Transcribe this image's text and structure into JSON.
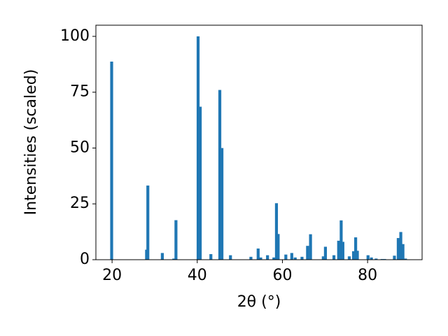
{
  "chart_data": {
    "type": "bar",
    "xlabel": "2θ (°)",
    "ylabel": "Intensities (scaled)",
    "color": "#1f77b4",
    "x": [
      19.9,
      28.1,
      28.4,
      31.8,
      34.5,
      35.0,
      40.2,
      40.7,
      43.2,
      45.3,
      45.8,
      47.8,
      52.6,
      54.3,
      54.9,
      56.5,
      58.0,
      58.6,
      59.0,
      60.8,
      62.2,
      63.0,
      64.6,
      65.9,
      66.6,
      69.6,
      70.1,
      72.1,
      73.2,
      73.8,
      74.2,
      75.7,
      76.7,
      77.2,
      77.6,
      80.1,
      80.9,
      82.0,
      83.4,
      84.0,
      86.3,
      87.2,
      87.8,
      88.3,
      88.9
    ],
    "values": [
      88.7,
      4.5,
      33.2,
      3.0,
      0.5,
      17.7,
      100,
      68.5,
      2.5,
      76.0,
      50.0,
      2.0,
      1.3,
      5.0,
      1.0,
      2.0,
      1.0,
      25.3,
      11.5,
      2.3,
      3.0,
      1.0,
      1.3,
      6.2,
      11.4,
      1.5,
      5.8,
      2.0,
      8.5,
      17.6,
      8.0,
      1.5,
      3.8,
      10.0,
      4.0,
      2.0,
      1.0,
      0.5,
      0.3,
      0.3,
      1.8,
      9.7,
      12.4,
      7.0,
      0.5
    ],
    "xlim": [
      16.2,
      92.8
    ],
    "ylim": [
      0,
      105
    ],
    "xticks": [
      20,
      40,
      60,
      80
    ],
    "yticks": [
      0,
      25,
      50,
      75,
      100
    ]
  }
}
